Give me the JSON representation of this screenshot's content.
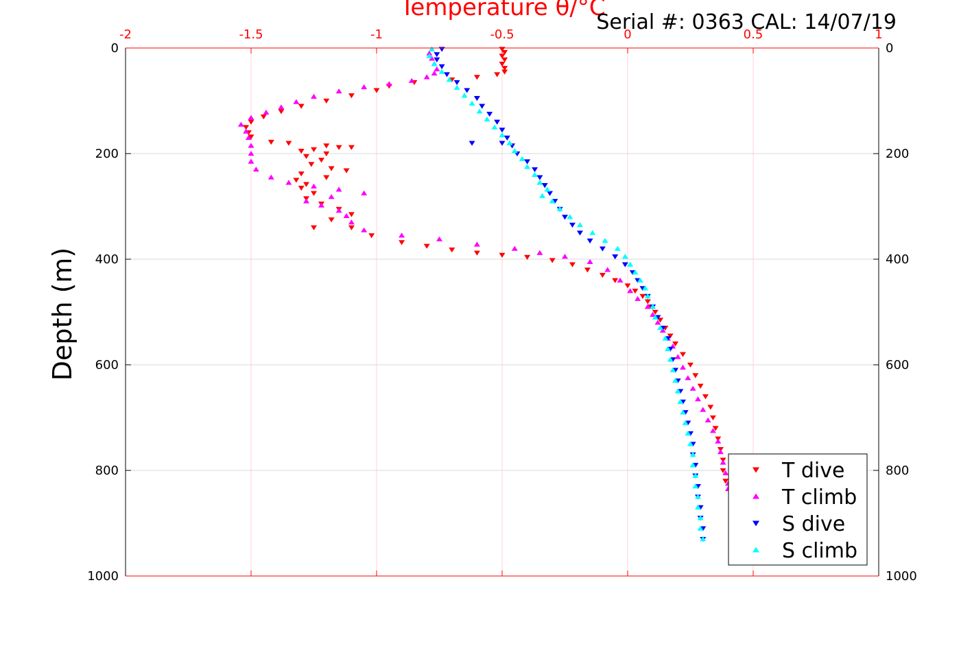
{
  "chart_data": {
    "type": "scatter",
    "title": "Temperature θ/°C",
    "subtitle": "Serial #: 0363  CAL: 14/07/19",
    "xlabel": "Temperature θ/°C",
    "ylabel": "Depth (m)",
    "xlim": [
      -2,
      1
    ],
    "ylim": [
      0,
      1000
    ],
    "y_inverted": true,
    "x_axis_position": "top",
    "x_ticks": [
      "-2",
      "-1.5",
      "-1",
      "-0.5",
      "0",
      "0.5",
      "1"
    ],
    "y_ticks": [
      "0",
      "200",
      "400",
      "600",
      "800",
      "1000"
    ],
    "grid": true,
    "axis_color": "#ff0000",
    "legend_position": "bottom-right",
    "series": [
      {
        "name": "T dive",
        "marker": "triangle-down",
        "color": "#ff0000",
        "points": [
          [
            -0.5,
            2
          ],
          [
            -0.49,
            8
          ],
          [
            -0.5,
            15
          ],
          [
            -0.49,
            22
          ],
          [
            -0.5,
            30
          ],
          [
            -0.49,
            38
          ],
          [
            -0.49,
            45
          ],
          [
            -0.52,
            50
          ],
          [
            -0.6,
            55
          ],
          [
            -0.7,
            60
          ],
          [
            -0.85,
            65
          ],
          [
            -0.95,
            72
          ],
          [
            -1.0,
            80
          ],
          [
            -1.1,
            90
          ],
          [
            -1.2,
            100
          ],
          [
            -1.3,
            110
          ],
          [
            -1.38,
            120
          ],
          [
            -1.45,
            130
          ],
          [
            -1.5,
            140
          ],
          [
            -1.52,
            150
          ],
          [
            -1.51,
            160
          ],
          [
            -1.5,
            168
          ],
          [
            -1.42,
            178
          ],
          [
            -1.35,
            180
          ],
          [
            -1.2,
            185
          ],
          [
            -1.15,
            188
          ],
          [
            -1.1,
            188
          ],
          [
            -1.25,
            192
          ],
          [
            -1.3,
            195
          ],
          [
            -1.2,
            200
          ],
          [
            -1.28,
            205
          ],
          [
            -1.22,
            212
          ],
          [
            -1.26,
            220
          ],
          [
            -1.18,
            228
          ],
          [
            -1.12,
            232
          ],
          [
            -1.3,
            238
          ],
          [
            -1.2,
            245
          ],
          [
            -1.32,
            250
          ],
          [
            -1.28,
            258
          ],
          [
            -1.3,
            265
          ],
          [
            -1.25,
            275
          ],
          [
            -1.28,
            285
          ],
          [
            -1.22,
            295
          ],
          [
            -1.15,
            305
          ],
          [
            -1.1,
            315
          ],
          [
            -1.18,
            325
          ],
          [
            -1.25,
            340
          ],
          [
            -1.1,
            340
          ],
          [
            -1.02,
            355
          ],
          [
            -0.9,
            368
          ],
          [
            -0.8,
            375
          ],
          [
            -0.7,
            382
          ],
          [
            -0.6,
            388
          ],
          [
            -0.5,
            392
          ],
          [
            -0.4,
            396
          ],
          [
            -0.3,
            402
          ],
          [
            -0.22,
            410
          ],
          [
            -0.16,
            420
          ],
          [
            -0.1,
            430
          ],
          [
            -0.05,
            440
          ],
          [
            0.0,
            450
          ],
          [
            0.03,
            460
          ],
          [
            0.06,
            470
          ],
          [
            0.08,
            480
          ],
          [
            0.09,
            490
          ],
          [
            0.11,
            500
          ],
          [
            0.13,
            515
          ],
          [
            0.15,
            530
          ],
          [
            0.17,
            545
          ],
          [
            0.19,
            560
          ],
          [
            0.22,
            580
          ],
          [
            0.25,
            600
          ],
          [
            0.27,
            620
          ],
          [
            0.29,
            640
          ],
          [
            0.31,
            660
          ],
          [
            0.33,
            680
          ],
          [
            0.34,
            700
          ],
          [
            0.35,
            720
          ],
          [
            0.36,
            740
          ],
          [
            0.37,
            760
          ],
          [
            0.38,
            780
          ],
          [
            0.38,
            800
          ],
          [
            0.39,
            820
          ]
        ]
      },
      {
        "name": "T climb",
        "marker": "triangle-up",
        "color": "#ff00ff",
        "points": [
          [
            -0.78,
            2
          ],
          [
            -0.79,
            10
          ],
          [
            -0.78,
            20
          ],
          [
            -0.77,
            30
          ],
          [
            -0.76,
            40
          ],
          [
            -0.77,
            48
          ],
          [
            -0.8,
            55
          ],
          [
            -0.86,
            62
          ],
          [
            -0.95,
            68
          ],
          [
            -1.05,
            74
          ],
          [
            -1.15,
            82
          ],
          [
            -1.25,
            92
          ],
          [
            -1.32,
            102
          ],
          [
            -1.38,
            112
          ],
          [
            -1.44,
            122
          ],
          [
            -1.5,
            132
          ],
          [
            -1.54,
            145
          ],
          [
            -1.52,
            158
          ],
          [
            -1.51,
            170
          ],
          [
            -1.5,
            185
          ],
          [
            -1.5,
            200
          ],
          [
            -1.5,
            215
          ],
          [
            -1.48,
            230
          ],
          [
            -1.42,
            245
          ],
          [
            -1.35,
            255
          ],
          [
            -1.25,
            262
          ],
          [
            -1.15,
            268
          ],
          [
            -1.05,
            275
          ],
          [
            -1.18,
            282
          ],
          [
            -1.28,
            290
          ],
          [
            -1.22,
            298
          ],
          [
            -1.15,
            308
          ],
          [
            -1.12,
            318
          ],
          [
            -1.1,
            330
          ],
          [
            -1.05,
            345
          ],
          [
            -0.9,
            355
          ],
          [
            -0.75,
            362
          ],
          [
            -0.6,
            372
          ],
          [
            -0.45,
            380
          ],
          [
            -0.35,
            388
          ],
          [
            -0.25,
            395
          ],
          [
            -0.15,
            405
          ],
          [
            -0.08,
            420
          ],
          [
            -0.03,
            440
          ],
          [
            0.01,
            460
          ],
          [
            0.04,
            475
          ],
          [
            0.08,
            490
          ],
          [
            0.1,
            505
          ],
          [
            0.12,
            520
          ],
          [
            0.14,
            535
          ],
          [
            0.16,
            550
          ],
          [
            0.18,
            565
          ],
          [
            0.2,
            585
          ],
          [
            0.22,
            605
          ],
          [
            0.24,
            625
          ],
          [
            0.26,
            645
          ],
          [
            0.28,
            665
          ],
          [
            0.3,
            685
          ],
          [
            0.32,
            705
          ],
          [
            0.34,
            725
          ],
          [
            0.36,
            745
          ],
          [
            0.37,
            765
          ],
          [
            0.38,
            785
          ],
          [
            0.39,
            805
          ],
          [
            0.4,
            825
          ],
          [
            0.4,
            835
          ]
        ]
      },
      {
        "name": "S dive",
        "marker": "triangle-down",
        "color": "#0000ff",
        "points": [
          [
            -0.74,
            2
          ],
          [
            -0.76,
            12
          ],
          [
            -0.76,
            22
          ],
          [
            -0.74,
            35
          ],
          [
            -0.72,
            50
          ],
          [
            -0.68,
            65
          ],
          [
            -0.64,
            80
          ],
          [
            -0.6,
            95
          ],
          [
            -0.58,
            110
          ],
          [
            -0.55,
            125
          ],
          [
            -0.52,
            140
          ],
          [
            -0.5,
            155
          ],
          [
            -0.48,
            170
          ],
          [
            -0.46,
            185
          ],
          [
            -0.5,
            180
          ],
          [
            -0.62,
            180
          ],
          [
            -0.44,
            200
          ],
          [
            -0.4,
            215
          ],
          [
            -0.37,
            230
          ],
          [
            -0.35,
            245
          ],
          [
            -0.33,
            260
          ],
          [
            -0.31,
            275
          ],
          [
            -0.29,
            290
          ],
          [
            -0.27,
            305
          ],
          [
            -0.25,
            320
          ],
          [
            -0.22,
            335
          ],
          [
            -0.19,
            350
          ],
          [
            -0.15,
            365
          ],
          [
            -0.1,
            380
          ],
          [
            -0.05,
            395
          ],
          [
            -0.01,
            410
          ],
          [
            0.02,
            425
          ],
          [
            0.04,
            440
          ],
          [
            0.06,
            455
          ],
          [
            0.08,
            470
          ],
          [
            0.1,
            490
          ],
          [
            0.12,
            510
          ],
          [
            0.14,
            530
          ],
          [
            0.16,
            550
          ],
          [
            0.17,
            570
          ],
          [
            0.18,
            590
          ],
          [
            0.19,
            610
          ],
          [
            0.2,
            630
          ],
          [
            0.21,
            650
          ],
          [
            0.22,
            670
          ],
          [
            0.23,
            690
          ],
          [
            0.24,
            710
          ],
          [
            0.25,
            730
          ],
          [
            0.26,
            750
          ],
          [
            0.26,
            770
          ],
          [
            0.27,
            790
          ],
          [
            0.27,
            810
          ],
          [
            0.28,
            830
          ],
          [
            0.28,
            850
          ],
          [
            0.29,
            870
          ],
          [
            0.29,
            890
          ],
          [
            0.3,
            910
          ],
          [
            0.3,
            930
          ]
        ]
      },
      {
        "name": "S climb",
        "marker": "triangle-up",
        "color": "#00ffff",
        "points": [
          [
            -0.78,
            2
          ],
          [
            -0.79,
            15
          ],
          [
            -0.77,
            30
          ],
          [
            -0.74,
            45
          ],
          [
            -0.71,
            60
          ],
          [
            -0.68,
            75
          ],
          [
            -0.65,
            90
          ],
          [
            -0.62,
            105
          ],
          [
            -0.59,
            120
          ],
          [
            -0.56,
            135
          ],
          [
            -0.53,
            150
          ],
          [
            -0.5,
            165
          ],
          [
            -0.47,
            180
          ],
          [
            -0.45,
            195
          ],
          [
            -0.42,
            210
          ],
          [
            -0.4,
            225
          ],
          [
            -0.37,
            240
          ],
          [
            -0.35,
            255
          ],
          [
            -0.32,
            268
          ],
          [
            -0.34,
            280
          ],
          [
            -0.3,
            290
          ],
          [
            -0.27,
            305
          ],
          [
            -0.23,
            320
          ],
          [
            -0.19,
            335
          ],
          [
            -0.14,
            350
          ],
          [
            -0.09,
            365
          ],
          [
            -0.04,
            380
          ],
          [
            -0.01,
            395
          ],
          [
            0.01,
            410
          ],
          [
            0.03,
            425
          ],
          [
            0.05,
            440
          ],
          [
            0.07,
            455
          ],
          [
            0.08,
            470
          ],
          [
            0.1,
            490
          ],
          [
            0.11,
            510
          ],
          [
            0.13,
            530
          ],
          [
            0.15,
            550
          ],
          [
            0.16,
            570
          ],
          [
            0.17,
            590
          ],
          [
            0.18,
            610
          ],
          [
            0.19,
            630
          ],
          [
            0.2,
            650
          ],
          [
            0.21,
            670
          ],
          [
            0.22,
            690
          ],
          [
            0.23,
            710
          ],
          [
            0.24,
            730
          ],
          [
            0.25,
            750
          ],
          [
            0.26,
            770
          ],
          [
            0.26,
            790
          ],
          [
            0.27,
            810
          ],
          [
            0.27,
            830
          ],
          [
            0.28,
            850
          ],
          [
            0.28,
            870
          ],
          [
            0.29,
            890
          ],
          [
            0.29,
            910
          ],
          [
            0.3,
            930
          ]
        ]
      }
    ]
  }
}
